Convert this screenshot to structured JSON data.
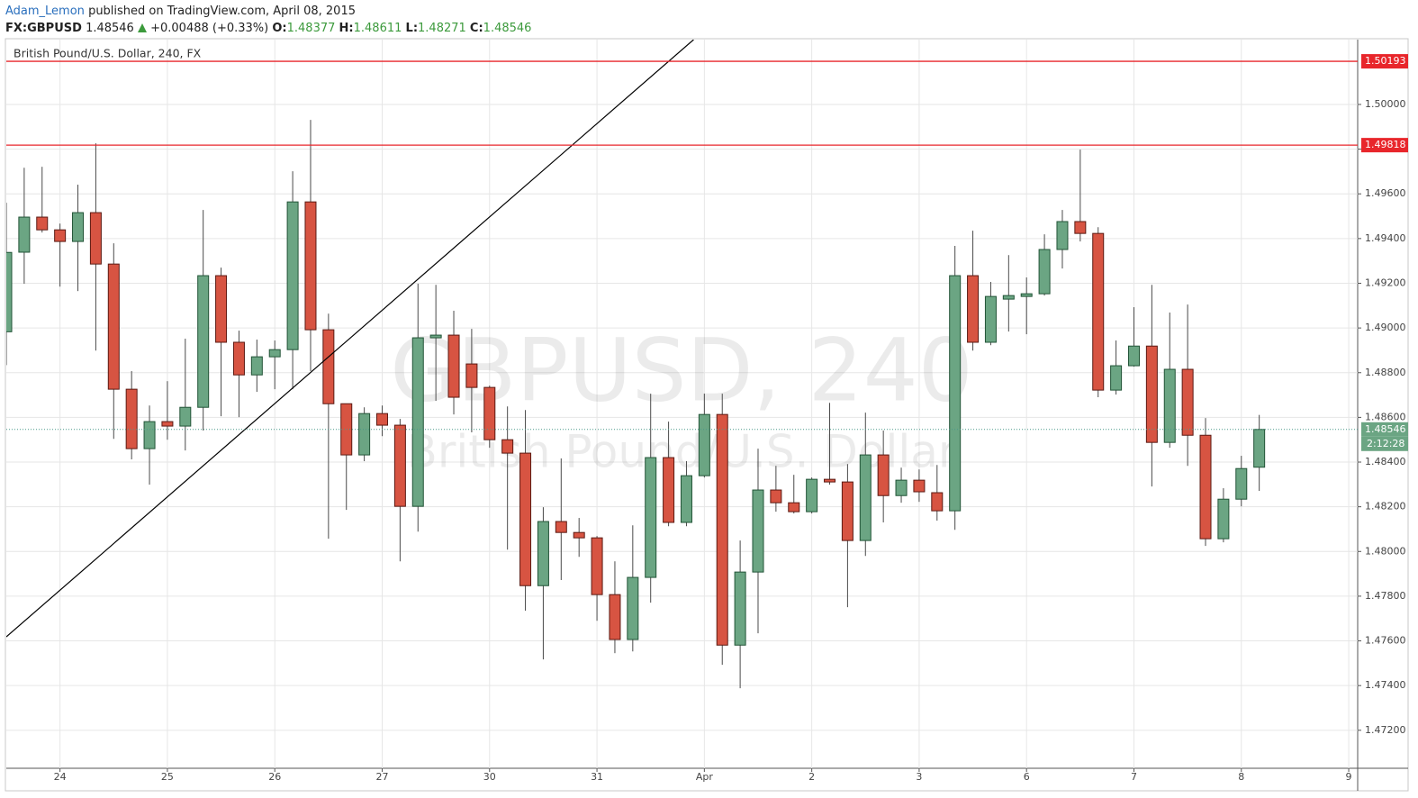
{
  "header": {
    "author": "Adam_Lemon",
    "published": "published on TradingView.com, April 08, 2015",
    "symbol": "FX:GBPUSD",
    "price": "1.48546",
    "change": "+0.00488 (+0.33%)",
    "open_label": "O:",
    "open": "1.48377",
    "high_label": "H:",
    "high": "1.48611",
    "low_label": "L:",
    "low": "1.48271",
    "close_label": "C:",
    "close": "1.48546"
  },
  "chart_data": {
    "type": "candlestick",
    "title": "British Pound/U.S. Dollar, 240, FX",
    "watermark": "GBPUSD, 240",
    "watermark_subtitle": "British Pound/U.S. Dollar",
    "up_color": "#6ba583",
    "down_color": "#d75442",
    "x": [
      0,
      1,
      2,
      3,
      4,
      5,
      6,
      7,
      8,
      9,
      10,
      11,
      12,
      13,
      14,
      15,
      16,
      17,
      18,
      19,
      20,
      21,
      22,
      23,
      24,
      25,
      26,
      27,
      28,
      29,
      30,
      31,
      32,
      33,
      34,
      35,
      36,
      37,
      38,
      39,
      40,
      41,
      42,
      43,
      44,
      45,
      46,
      47,
      48,
      49,
      50,
      51,
      52,
      53,
      54,
      55,
      56,
      57,
      58,
      59,
      60,
      61,
      62,
      63,
      64,
      65,
      66,
      67,
      68,
      69,
      70
    ],
    "open": [
      1.48983,
      1.49339,
      1.49496,
      1.49439,
      1.49387,
      1.49516,
      1.49286,
      1.48726,
      1.4846,
      1.48581,
      1.48561,
      1.48645,
      1.49234,
      1.48936,
      1.4879,
      1.48871,
      1.48903,
      1.49564,
      1.48992,
      1.48661,
      1.48432,
      1.48617,
      1.48565,
      1.48202,
      1.48956,
      1.48968,
      1.48839,
      1.48734,
      1.485,
      1.4844,
      1.47847,
      1.48134,
      1.48085,
      1.48061,
      1.47807,
      1.47606,
      1.47884,
      1.4842,
      1.4813,
      1.48339,
      1.48613,
      1.47581,
      1.47908,
      1.48275,
      1.48218,
      1.48178,
      1.48323,
      1.48311,
      1.48049,
      1.48432,
      1.4825,
      1.48319,
      1.48263,
      1.48182,
      1.49234,
      1.48936,
      1.49129,
      1.49141,
      1.49153,
      1.49351,
      1.49476,
      1.49423,
      1.48722,
      1.48831,
      1.48919,
      1.48488,
      1.48815,
      1.4852,
      1.48057,
      1.48234,
      1.48377
    ],
    "high": [
      1.4956,
      1.49717,
      1.49721,
      1.49467,
      1.49641,
      1.49826,
      1.49379,
      1.48807,
      1.48653,
      1.48762,
      1.48952,
      1.49528,
      1.4927,
      1.48988,
      1.48948,
      1.48944,
      1.49701,
      1.49931,
      1.49064,
      1.48661,
      1.48645,
      1.48653,
      1.48593,
      1.49198,
      1.49193,
      1.49077,
      1.48996,
      1.48742,
      1.48649,
      1.48633,
      1.48198,
      1.48416,
      1.4815,
      1.48069,
      1.47956,
      1.48117,
      1.48706,
      1.48581,
      1.48404,
      1.48706,
      1.48706,
      1.48049,
      1.4846,
      1.48383,
      1.48343,
      1.48331,
      1.48665,
      1.48391,
      1.48621,
      1.48541,
      1.48375,
      1.48367,
      1.48387,
      1.49367,
      1.49435,
      1.49206,
      1.49326,
      1.49226,
      1.49419,
      1.49528,
      1.49798,
      1.49451,
      1.48944,
      1.49093,
      1.49193,
      1.49069,
      1.49105,
      1.48597,
      1.48283,
      1.48428,
      1.48611
    ],
    "low": [
      1.48834,
      1.49198,
      1.49427,
      1.49185,
      1.49165,
      1.48899,
      1.48504,
      1.48412,
      1.48299,
      1.485,
      1.48452,
      1.48541,
      1.48605,
      1.48601,
      1.48714,
      1.48726,
      1.48726,
      1.48807,
      1.48057,
      1.48186,
      1.48404,
      1.48516,
      1.47956,
      1.48089,
      1.48674,
      1.48613,
      1.48533,
      1.48464,
      1.48008,
      1.47735,
      1.47517,
      1.47872,
      1.47976,
      1.4769,
      1.47545,
      1.47553,
      1.47771,
      1.48113,
      1.48113,
      1.48331,
      1.47493,
      1.47388,
      1.47634,
      1.48178,
      1.4817,
      1.4817,
      1.48299,
      1.47751,
      1.4798,
      1.4813,
      1.48218,
      1.48222,
      1.48138,
      1.48097,
      1.48899,
      1.48923,
      1.48984,
      1.48972,
      1.49145,
      1.49266,
      1.49387,
      1.4869,
      1.48702,
      1.48827,
      1.48291,
      1.48464,
      1.48383,
      1.48025,
      1.48041,
      1.48202,
      1.48271
    ],
    "close": [
      1.49338,
      1.49496,
      1.49439,
      1.49387,
      1.49516,
      1.49286,
      1.48726,
      1.4846,
      1.48581,
      1.48561,
      1.48645,
      1.49234,
      1.48936,
      1.4879,
      1.48871,
      1.48903,
      1.49564,
      1.48992,
      1.48661,
      1.48432,
      1.48617,
      1.48565,
      1.48202,
      1.48956,
      1.48968,
      1.4869,
      1.48734,
      1.485,
      1.4844,
      1.47847,
      1.48134,
      1.48085,
      1.48061,
      1.47807,
      1.47606,
      1.47884,
      1.4842,
      1.4813,
      1.48339,
      1.48613,
      1.47581,
      1.47908,
      1.48275,
      1.48218,
      1.48178,
      1.48323,
      1.48311,
      1.48049,
      1.48432,
      1.4825,
      1.48319,
      1.48267,
      1.48182,
      1.49234,
      1.48936,
      1.49141,
      1.49145,
      1.49153,
      1.49351,
      1.49476,
      1.49423,
      1.48722,
      1.48831,
      1.48919,
      1.48488,
      1.48815,
      1.4852,
      1.48057,
      1.48234,
      1.48371,
      1.48546
    ],
    "xlim": [
      0,
      75.5
    ],
    "xticks": [
      {
        "value": 3,
        "label": "24"
      },
      {
        "value": 9,
        "label": "25"
      },
      {
        "value": 15,
        "label": "26"
      },
      {
        "value": 21,
        "label": "27"
      },
      {
        "value": 27,
        "label": "30"
      },
      {
        "value": 33,
        "label": "31"
      },
      {
        "value": 39,
        "label": "Apr"
      },
      {
        "value": 45,
        "label": "2"
      },
      {
        "value": 51,
        "label": "3"
      },
      {
        "value": 57,
        "label": "6"
      },
      {
        "value": 63,
        "label": "7"
      },
      {
        "value": 69,
        "label": "8"
      },
      {
        "value": 75,
        "label": "9"
      }
    ],
    "ylim": [
      1.4703,
      1.5029
    ],
    "yticks": [
      {
        "value": 1.472,
        "label": "1.47200"
      },
      {
        "value": 1.474,
        "label": "1.47400"
      },
      {
        "value": 1.476,
        "label": "1.47600"
      },
      {
        "value": 1.478,
        "label": "1.47800"
      },
      {
        "value": 1.48,
        "label": "1.48000"
      },
      {
        "value": 1.482,
        "label": "1.48200"
      },
      {
        "value": 1.484,
        "label": "1.48400"
      },
      {
        "value": 1.486,
        "label": "1.48600"
      },
      {
        "value": 1.488,
        "label": "1.48800"
      },
      {
        "value": 1.49,
        "label": "1.49000"
      },
      {
        "value": 1.492,
        "label": "1.49200"
      },
      {
        "value": 1.494,
        "label": "1.49400"
      },
      {
        "value": 1.496,
        "label": "1.49600"
      },
      {
        "value": 1.498,
        "label": "1.49800"
      },
      {
        "value": 1.5,
        "label": "1.50000"
      }
    ],
    "grid": true,
    "hlines": [
      {
        "value": 1.50193,
        "color": "#e8262b"
      },
      {
        "value": 1.49818,
        "color": "#e8262b"
      }
    ],
    "last_price": {
      "value": 1.48546,
      "color": "#4a9a8a",
      "countdown": "2:12:28"
    },
    "trendline": {
      "x": [
        0,
        38.4
      ],
      "y": [
        1.47618,
        1.5029
      ],
      "color": "#000000"
    }
  }
}
